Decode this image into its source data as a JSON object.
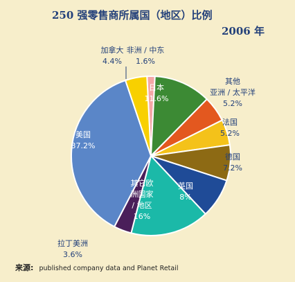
{
  "chart_data": {
    "type": "pie",
    "title_line1": "250 强零售商所属国（地区）比例",
    "title_line2": "2006 年",
    "slices": [
      {
        "label": "非洲 / 中东",
        "value": 1.6,
        "value_text": "1.6%",
        "color": "#f4a6a6"
      },
      {
        "label": "日本",
        "value": 11.6,
        "value_text": "11.6%",
        "color": "#3c8a34"
      },
      {
        "label": "其他 亚洲 / 太平洋",
        "value": 5.2,
        "value_text": "5.2%",
        "color": "#e3581f"
      },
      {
        "label": "法国",
        "value": 5.2,
        "value_text": "5.2%",
        "color": "#f4c21a"
      },
      {
        "label": "德国",
        "value": 7.2,
        "value_text": "7.2%",
        "color": "#8d6a14"
      },
      {
        "label": "英国",
        "value": 8.0,
        "value_text": "8%",
        "color": "#1f4b97"
      },
      {
        "label": "其它欧洲国家 / 地区",
        "value": 16.0,
        "value_text": "16%",
        "color": "#1bb9a8"
      },
      {
        "label": "拉丁美洲",
        "value": 3.6,
        "value_text": "3.6%",
        "color": "#4a1f5a"
      },
      {
        "label": "美国",
        "value": 37.2,
        "value_text": "37.2%",
        "color": "#5a86c8"
      },
      {
        "label": "加拿大",
        "value": 4.4,
        "value_text": "4.4%",
        "color": "#f8d000"
      }
    ]
  },
  "source": {
    "key": "来源:",
    "text": "published company data and Planet Retail"
  }
}
